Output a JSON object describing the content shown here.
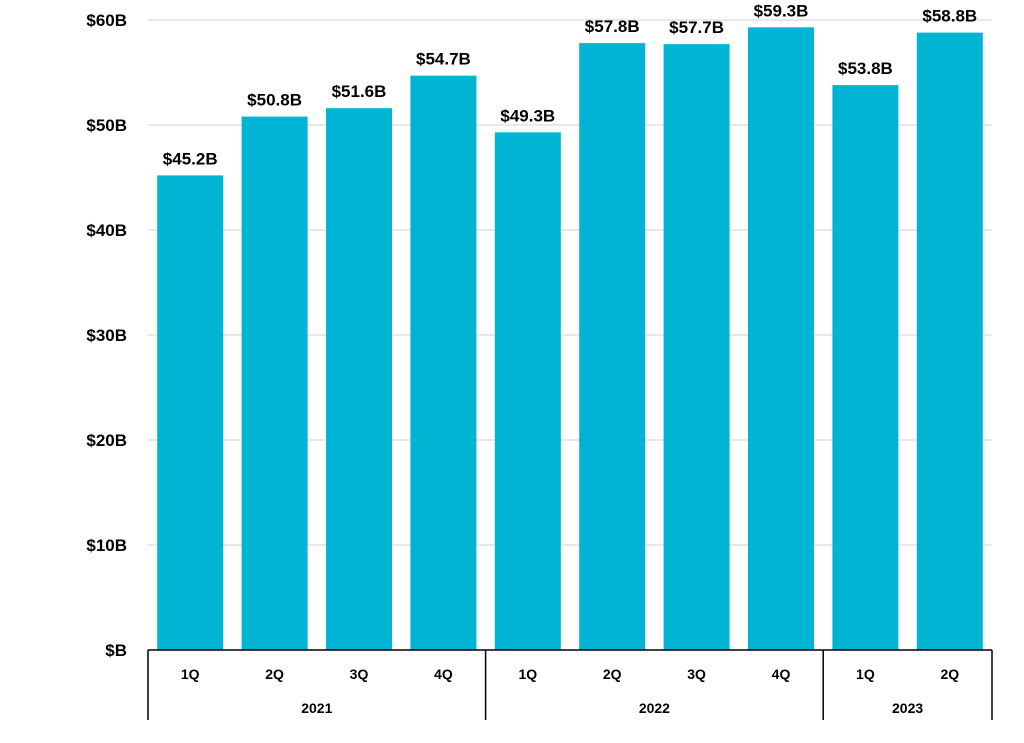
{
  "chart_data": {
    "type": "bar",
    "categories": [
      "1Q",
      "2Q",
      "3Q",
      "4Q",
      "1Q",
      "2Q",
      "3Q",
      "4Q",
      "1Q",
      "2Q"
    ],
    "groups": [
      {
        "label": "2021",
        "count": 4
      },
      {
        "label": "2022",
        "count": 4
      },
      {
        "label": "2023",
        "count": 2
      }
    ],
    "values": [
      45.2,
      50.8,
      51.6,
      54.7,
      49.3,
      57.8,
      57.7,
      59.3,
      53.8,
      58.8
    ],
    "data_labels": [
      "$45.2B",
      "$50.8B",
      "$51.6B",
      "$54.7B",
      "$49.3B",
      "$57.8B",
      "$57.7B",
      "$59.3B",
      "$53.8B",
      "$58.8B"
    ],
    "ylim": [
      0,
      60
    ],
    "yticks": [
      0,
      10,
      20,
      30,
      40,
      50,
      60
    ],
    "ytick_labels": [
      "$B",
      "$10B",
      "$20B",
      "$30B",
      "$40B",
      "$50B",
      "$60B"
    ],
    "grid": true,
    "bar_color": "#00B4D4",
    "title": "",
    "xlabel": "",
    "ylabel": ""
  }
}
